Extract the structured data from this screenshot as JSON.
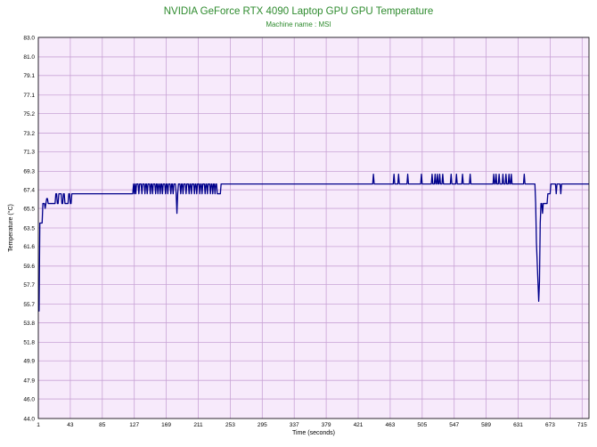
{
  "chart_data": {
    "type": "line",
    "title": "NVIDIA GeForce RTX 4090 Laptop GPU GPU Temperature",
    "subtitle": "Machine name : MSI",
    "xlabel": "Time (seconds)",
    "ylabel": "Temperature (°C)",
    "xlim": [
      1,
      724
    ],
    "ylim": [
      44.0,
      83.0
    ],
    "x_ticks": [
      "1",
      "43",
      "85",
      "127",
      "169",
      "211",
      "253",
      "295",
      "337",
      "379",
      "421",
      "463",
      "505",
      "547",
      "589",
      "631",
      "673",
      "715"
    ],
    "y_ticks": [
      "44.0",
      "46.0",
      "47.9",
      "49.9",
      "51.8",
      "53.8",
      "55.7",
      "57.7",
      "59.6",
      "61.6",
      "63.5",
      "65.5",
      "67.4",
      "69.3",
      "71.3",
      "73.2",
      "75.2",
      "77.1",
      "79.1",
      "81.0",
      "83.0"
    ],
    "grid": true,
    "colors": {
      "plot_bg": "#f7eafb",
      "grid": "#c9a3d6",
      "line": "#00008b",
      "title": "#2e8b2e"
    },
    "series": [
      {
        "values": [
          [
            1,
            55
          ],
          [
            2,
            55
          ],
          [
            3,
            64
          ],
          [
            6,
            64
          ],
          [
            7,
            66
          ],
          [
            9,
            66
          ],
          [
            10,
            65.5
          ],
          [
            11,
            66
          ],
          [
            12,
            66.5
          ],
          [
            13,
            66.5
          ],
          [
            14,
            66
          ],
          [
            23,
            66
          ],
          [
            24,
            67
          ],
          [
            25,
            67
          ],
          [
            26,
            66
          ],
          [
            27,
            66
          ],
          [
            28,
            67
          ],
          [
            31,
            67
          ],
          [
            32,
            66
          ],
          [
            33,
            66
          ],
          [
            34,
            67
          ],
          [
            35,
            67
          ],
          [
            36,
            66
          ],
          [
            40,
            66
          ],
          [
            41,
            67
          ],
          [
            42,
            67
          ],
          [
            43,
            66
          ],
          [
            44,
            66
          ],
          [
            45,
            67
          ],
          [
            125,
            67
          ],
          [
            126,
            68
          ],
          [
            127,
            67
          ],
          [
            128,
            68
          ],
          [
            129,
            67
          ],
          [
            130,
            68
          ],
          [
            132,
            68
          ],
          [
            133,
            67
          ],
          [
            134,
            68
          ],
          [
            136,
            68
          ],
          [
            137,
            67
          ],
          [
            138,
            68
          ],
          [
            140,
            68
          ],
          [
            141,
            67
          ],
          [
            142,
            68
          ],
          [
            143,
            68
          ],
          [
            144,
            67
          ],
          [
            145,
            68
          ],
          [
            147,
            68
          ],
          [
            148,
            67
          ],
          [
            149,
            68
          ],
          [
            150,
            68
          ],
          [
            151,
            67
          ],
          [
            152,
            68
          ],
          [
            154,
            68
          ],
          [
            155,
            67
          ],
          [
            156,
            68
          ],
          [
            157,
            68
          ],
          [
            158,
            67
          ],
          [
            159,
            68
          ],
          [
            160,
            68
          ],
          [
            161,
            67
          ],
          [
            162,
            68
          ],
          [
            163,
            68
          ],
          [
            164,
            67
          ],
          [
            165,
            68
          ],
          [
            167,
            68
          ],
          [
            168,
            67
          ],
          [
            169,
            68
          ],
          [
            170,
            68
          ],
          [
            171,
            67
          ],
          [
            172,
            68
          ],
          [
            174,
            68
          ],
          [
            175,
            67
          ],
          [
            176,
            68
          ],
          [
            177,
            68
          ],
          [
            178,
            67
          ],
          [
            179,
            68
          ],
          [
            181,
            68
          ],
          [
            182,
            67
          ],
          [
            183,
            65
          ],
          [
            184,
            67
          ],
          [
            185,
            68
          ],
          [
            187,
            68
          ],
          [
            188,
            67
          ],
          [
            189,
            68
          ],
          [
            190,
            68
          ],
          [
            191,
            67
          ],
          [
            192,
            68
          ],
          [
            194,
            68
          ],
          [
            195,
            67
          ],
          [
            196,
            68
          ],
          [
            198,
            68
          ],
          [
            199,
            67
          ],
          [
            200,
            68
          ],
          [
            201,
            68
          ],
          [
            202,
            67
          ],
          [
            203,
            68
          ],
          [
            205,
            68
          ],
          [
            206,
            67
          ],
          [
            207,
            68
          ],
          [
            208,
            68
          ],
          [
            209,
            67
          ],
          [
            210,
            68
          ],
          [
            212,
            68
          ],
          [
            213,
            67
          ],
          [
            214,
            68
          ],
          [
            215,
            68
          ],
          [
            216,
            67
          ],
          [
            217,
            68
          ],
          [
            219,
            68
          ],
          [
            220,
            67
          ],
          [
            221,
            68
          ],
          [
            222,
            68
          ],
          [
            223,
            67
          ],
          [
            224,
            68
          ],
          [
            226,
            68
          ],
          [
            227,
            67
          ],
          [
            228,
            68
          ],
          [
            229,
            68
          ],
          [
            230,
            67
          ],
          [
            231,
            68
          ],
          [
            232,
            68
          ],
          [
            233,
            67
          ],
          [
            234,
            68
          ],
          [
            235,
            68
          ],
          [
            236,
            67
          ],
          [
            237,
            67
          ],
          [
            240,
            67
          ],
          [
            241,
            68
          ],
          [
            440,
            68
          ],
          [
            441,
            69
          ],
          [
            442,
            68
          ],
          [
            467,
            68
          ],
          [
            468,
            69
          ],
          [
            469,
            68
          ],
          [
            473,
            68
          ],
          [
            474,
            69
          ],
          [
            475,
            68
          ],
          [
            485,
            68
          ],
          [
            486,
            69
          ],
          [
            487,
            68
          ],
          [
            503,
            68
          ],
          [
            504,
            69
          ],
          [
            505,
            68
          ],
          [
            517,
            68
          ],
          [
            518,
            69
          ],
          [
            519,
            68
          ],
          [
            521,
            68
          ],
          [
            522,
            69
          ],
          [
            523,
            68
          ],
          [
            524,
            68
          ],
          [
            525,
            69
          ],
          [
            526,
            68
          ],
          [
            527,
            68
          ],
          [
            528,
            69
          ],
          [
            529,
            68
          ],
          [
            531,
            68
          ],
          [
            532,
            69
          ],
          [
            533,
            68
          ],
          [
            542,
            68
          ],
          [
            543,
            69
          ],
          [
            544,
            68
          ],
          [
            549,
            68
          ],
          [
            550,
            69
          ],
          [
            551,
            68
          ],
          [
            557,
            68
          ],
          [
            558,
            69
          ],
          [
            559,
            68
          ],
          [
            567,
            68
          ],
          [
            568,
            69
          ],
          [
            569,
            68
          ],
          [
            598,
            68
          ],
          [
            599,
            69
          ],
          [
            600,
            68
          ],
          [
            601,
            68
          ],
          [
            602,
            69
          ],
          [
            603,
            68
          ],
          [
            605,
            68
          ],
          [
            606,
            69
          ],
          [
            607,
            68
          ],
          [
            610,
            68
          ],
          [
            611,
            69
          ],
          [
            612,
            68
          ],
          [
            614,
            68
          ],
          [
            615,
            69
          ],
          [
            616,
            68
          ],
          [
            618,
            68
          ],
          [
            619,
            69
          ],
          [
            620,
            68
          ],
          [
            621,
            68
          ],
          [
            622,
            69
          ],
          [
            623,
            68
          ],
          [
            638,
            68
          ],
          [
            639,
            69
          ],
          [
            640,
            68
          ],
          [
            653,
            68
          ],
          [
            654,
            66
          ],
          [
            655,
            62
          ],
          [
            656,
            60
          ],
          [
            657,
            58
          ],
          [
            658,
            56
          ],
          [
            659,
            58
          ],
          [
            660,
            64
          ],
          [
            661,
            66
          ],
          [
            662,
            66
          ],
          [
            663,
            65
          ],
          [
            664,
            66
          ],
          [
            669,
            66
          ],
          [
            670,
            67
          ],
          [
            673,
            67
          ],
          [
            674,
            68
          ],
          [
            680,
            68
          ],
          [
            681,
            67
          ],
          [
            682,
            68
          ],
          [
            686,
            68
          ],
          [
            687,
            67
          ],
          [
            688,
            68
          ],
          [
            724,
            68
          ]
        ]
      }
    ]
  }
}
